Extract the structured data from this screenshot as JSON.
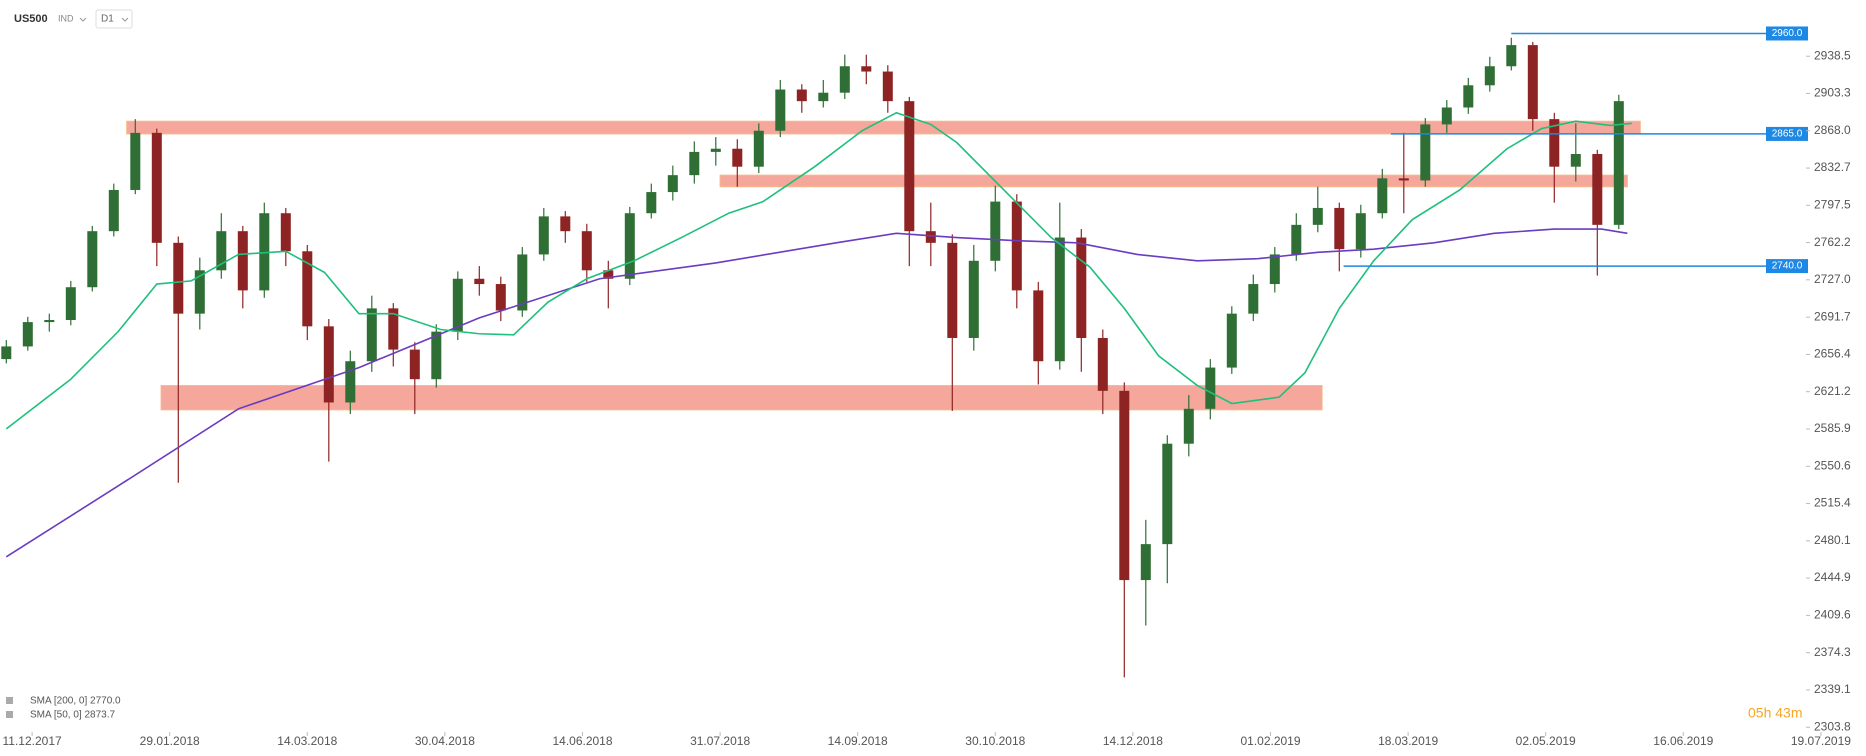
{
  "header": {
    "symbol": "US500",
    "market": "IND",
    "interval": "D1"
  },
  "chart_data": {
    "type": "candlestick",
    "x": [
      1,
      6,
      11,
      16,
      21,
      26,
      31,
      36,
      41,
      46,
      51,
      56,
      61,
      66,
      71,
      76,
      81,
      86,
      91,
      96,
      101,
      106,
      111,
      116,
      121,
      126,
      131,
      136,
      141,
      146,
      151,
      156,
      161,
      166,
      171,
      176,
      181,
      186,
      191,
      196,
      201,
      206,
      211,
      216,
      221,
      226,
      231,
      236,
      241,
      246,
      251,
      256,
      261,
      266,
      271,
      276,
      281,
      286,
      291,
      296,
      301,
      306,
      311,
      316,
      321,
      326,
      331,
      336,
      341,
      346,
      351,
      356,
      361,
      366,
      371,
      376
    ],
    "open": [
      2652,
      2664,
      2687,
      2689,
      2720,
      2773,
      2812,
      2866,
      2762,
      2695,
      2736,
      2773,
      2717,
      2790,
      2754,
      2683,
      2611,
      2650,
      2700,
      2661,
      2633,
      2678,
      2728,
      2723,
      2698,
      2751,
      2787,
      2773,
      2736,
      2728,
      2790,
      2810,
      2826,
      2848,
      2851,
      2834,
      2868,
      2907,
      2896,
      2904,
      2929,
      2924,
      2896,
      2773,
      2762,
      2672,
      2745,
      2801,
      2717,
      2650,
      2767,
      2672,
      2622,
      2443,
      2477,
      2572,
      2605,
      2644,
      2695,
      2723,
      2751,
      2779,
      2795,
      2756,
      2790,
      2823,
      2821,
      2874,
      2890,
      2911,
      2929,
      2949,
      2879,
      2834,
      2846,
      2779
    ],
    "high": [
      2670,
      2692,
      2695,
      2726,
      2778,
      2818,
      2879,
      2870,
      2768,
      2748,
      2790,
      2778,
      2800,
      2795,
      2760,
      2690,
      2660,
      2712,
      2705,
      2668,
      2685,
      2735,
      2740,
      2730,
      2758,
      2795,
      2792,
      2780,
      2745,
      2796,
      2818,
      2835,
      2858,
      2862,
      2860,
      2875,
      2916,
      2912,
      2916,
      2940,
      2940,
      2930,
      2900,
      2800,
      2770,
      2760,
      2816,
      2808,
      2725,
      2800,
      2775,
      2680,
      2630,
      2500,
      2580,
      2618,
      2652,
      2702,
      2732,
      2758,
      2790,
      2815,
      2800,
      2798,
      2832,
      2866,
      2880,
      2897,
      2918,
      2938,
      2956,
      2952,
      2885,
      2875,
      2850,
      2902
    ],
    "low": [
      2648,
      2660,
      2678,
      2684,
      2716,
      2768,
      2808,
      2740,
      2535,
      2680,
      2728,
      2700,
      2710,
      2740,
      2670,
      2555,
      2600,
      2640,
      2645,
      2600,
      2625,
      2670,
      2712,
      2688,
      2692,
      2745,
      2762,
      2725,
      2700,
      2722,
      2785,
      2802,
      2818,
      2835,
      2815,
      2828,
      2862,
      2885,
      2890,
      2898,
      2912,
      2885,
      2740,
      2740,
      2603,
      2660,
      2735,
      2700,
      2628,
      2642,
      2640,
      2600,
      2351,
      2400,
      2440,
      2560,
      2595,
      2638,
      2688,
      2715,
      2745,
      2772,
      2735,
      2748,
      2785,
      2790,
      2815,
      2866,
      2884,
      2905,
      2925,
      2868,
      2800,
      2820,
      2731,
      2775
    ],
    "close": [
      2664,
      2687,
      2689,
      2720,
      2773,
      2812,
      2866,
      2762,
      2695,
      2736,
      2773,
      2717,
      2790,
      2754,
      2683,
      2611,
      2650,
      2700,
      2661,
      2633,
      2678,
      2728,
      2723,
      2698,
      2751,
      2787,
      2773,
      2736,
      2728,
      2790,
      2810,
      2826,
      2848,
      2851,
      2834,
      2868,
      2907,
      2896,
      2904,
      2929,
      2924,
      2896,
      2773,
      2762,
      2672,
      2745,
      2801,
      2717,
      2650,
      2767,
      2672,
      2622,
      2443,
      2477,
      2572,
      2605,
      2644,
      2695,
      2723,
      2751,
      2779,
      2795,
      2756,
      2790,
      2823,
      2821,
      2874,
      2890,
      2911,
      2929,
      2949,
      2879,
      2834,
      2846,
      2779,
      2896
    ],
    "up_color": "#2f6e34",
    "down_color": "#8e2323",
    "xlim": [
      0,
      430
    ],
    "xticks": [
      {
        "value": 7,
        "label": "11.12.2017"
      },
      {
        "value": 39,
        "label": "29.01.2018"
      },
      {
        "value": 71,
        "label": "14.03.2018"
      },
      {
        "value": 103,
        "label": "30.04.2018"
      },
      {
        "value": 135,
        "label": "14.06.2018"
      },
      {
        "value": 167,
        "label": "31.07.2018"
      },
      {
        "value": 199,
        "label": "14.09.2018"
      },
      {
        "value": 231,
        "label": "30.10.2018"
      },
      {
        "value": 263,
        "label": "14.12.2018"
      },
      {
        "value": 295,
        "label": "01.02.2019"
      },
      {
        "value": 327,
        "label": "18.03.2019"
      },
      {
        "value": 359,
        "label": "02.05.2019"
      },
      {
        "value": 391,
        "label": "16.06.2019"
      },
      {
        "value": 423,
        "label": "19.07.2019"
      }
    ],
    "ylim": [
      2299.3,
      2986
    ],
    "yticks": [
      2938.5,
      2903.3,
      {
        "value": 2868,
        "label": "2868.0"
      },
      2832.7,
      2797.5,
      2762.2,
      {
        "value": 2727,
        "label": "2727.0"
      },
      2691.7,
      2656.4,
      2621.2,
      2585.9,
      2550.6,
      2515.4,
      2480.1,
      2444.9,
      2409.6,
      2374.3,
      2339.1,
      2303.8
    ],
    "series": [
      {
        "name": "SMA [200, 0] 2770.0",
        "color": "#6a3cc0",
        "x": [
          1,
          27,
          55,
          83,
          111,
          139,
          166,
          194,
          208,
          222,
          236,
          250,
          264,
          278,
          292,
          306,
          319,
          333,
          347,
          361,
          372,
          378
        ],
        "values": [
          2465,
          2532,
          2605,
          2644,
          2691,
          2728,
          2743,
          2762,
          2771,
          2767,
          2764,
          2762,
          2751,
          2745,
          2747,
          2753,
          2756,
          2762,
          2771,
          2775,
          2775,
          2771
        ]
      },
      {
        "name": "SMA [50, 0] 2873.7",
        "color": "#1fbf7c",
        "x": [
          1,
          16,
          27,
          36,
          44,
          55,
          66,
          75,
          83,
          91,
          102,
          111,
          119,
          127,
          136,
          147,
          158,
          169,
          177,
          189,
          200,
          208,
          216,
          222,
          233,
          244,
          253,
          261,
          269,
          278,
          286,
          297,
          303,
          311,
          319,
          328,
          339,
          350,
          358,
          366,
          374,
          379
        ],
        "values": [
          2586,
          2633,
          2678,
          2723,
          2726,
          2751,
          2754,
          2734,
          2695,
          2695,
          2680,
          2676,
          2675,
          2706,
          2728,
          2745,
          2767,
          2790,
          2801,
          2834,
          2868,
          2885,
          2874,
          2857,
          2812,
          2767,
          2739,
          2700,
          2655,
          2627,
          2610,
          2616,
          2639,
          2700,
          2745,
          2784,
          2812,
          2851,
          2870,
          2877,
          2873,
          2875
        ]
      }
    ],
    "zones": [
      {
        "from": 29,
        "to": 381,
        "low": 2865,
        "high": 2877
      },
      {
        "from": 167,
        "to": 378,
        "low": 2815,
        "high": 2826
      },
      {
        "from": 37,
        "to": 307,
        "low": 2604,
        "high": 2627
      }
    ],
    "zone_color": "#f08a78",
    "levels": [
      {
        "value": 2960,
        "label": "2960.0",
        "from": 351
      },
      {
        "value": 2865,
        "label": "2865.0",
        "from": 323
      },
      {
        "value": 2740,
        "label": "2740.0",
        "from": 312
      }
    ],
    "level_color": "#1e88e5",
    "countdown": "05h 43m",
    "countdown_color": "#f5a623"
  }
}
